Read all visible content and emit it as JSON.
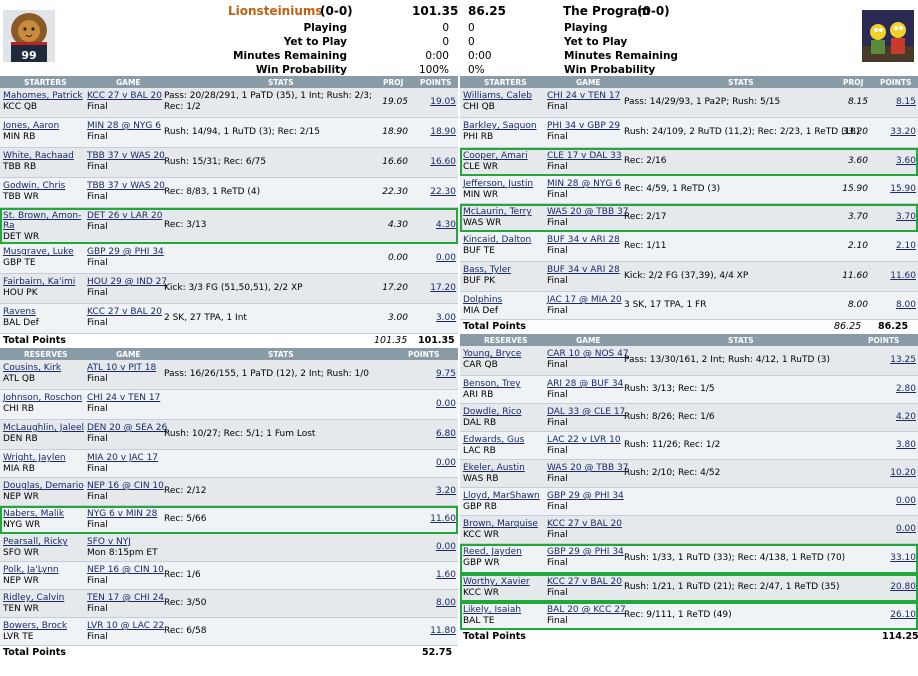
{
  "header": {
    "left_team": "Lionsteiniums",
    "left_record": "(0-0)",
    "left_score": "101.35",
    "right_team": "The Program",
    "right_record": "(0-0)",
    "right_score": "86.25",
    "labels": [
      "Playing",
      "Yet to Play",
      "Minutes Remaining",
      "Win Probability"
    ],
    "left_values": [
      "0",
      "0",
      "0:00",
      "100%"
    ],
    "right_values": [
      "0",
      "0",
      "0:00",
      "0%"
    ],
    "left_jersey": "99"
  },
  "cols": {
    "starters": "STARTERS",
    "reserves": "RESERVES",
    "game": "GAME",
    "stats": "STATS",
    "proj": "PROJ",
    "points": "POINTS",
    "total": "Total Points"
  },
  "left": {
    "starters": [
      {
        "name": "Mahomes, Patrick",
        "pos": "KCC QB",
        "game": "KCC 27 v BAL 20",
        "status": "Final",
        "stats": "Pass: 20/28/291, 1 PaTD (35), 1 Int; Rush: 2/3;",
        "stats2": "Rec: 1/2",
        "proj": "19.05",
        "pts": "19.05"
      },
      {
        "name": "Jones, Aaron",
        "pos": "MIN RB",
        "game": "MIN 28 @ NYG 6",
        "status": "Final",
        "stats": "Rush: 14/94, 1 RuTD (3); Rec: 2/15",
        "proj": "18.90",
        "pts": "18.90"
      },
      {
        "name": "White, Rachaad",
        "pos": "TBB RB",
        "game": "TBB 37 v WAS 20",
        "status": "Final",
        "stats": "Rush: 15/31; Rec: 6/75",
        "proj": "16.60",
        "pts": "16.60"
      },
      {
        "name": "Godwin, Chris",
        "pos": "TBB WR",
        "game": "TBB 37 v WAS 20",
        "status": "Final",
        "stats": "Rec: 8/83, 1 ReTD (4)",
        "proj": "22.30",
        "pts": "22.30"
      },
      {
        "name": "St. Brown, Amon-",
        "name2": "Ra",
        "pos": "DET WR",
        "game": "DET 26 v LAR 20",
        "status": "Final",
        "stats": "Rec: 3/13",
        "proj": "4.30",
        "pts": "4.30"
      },
      {
        "name": "Musgrave, Luke",
        "pos": "GBP TE",
        "game": "GBP 29 @ PHI 34",
        "status": "Final",
        "stats": "",
        "proj": "0.00",
        "pts": "0.00"
      },
      {
        "name": "Fairbairn, Ka'imi",
        "pos": "HOU PK",
        "game": "HOU 29 @ IND 27",
        "status": "Final",
        "stats": "Kick: 3/3 FG (51,50,51), 2/2 XP",
        "proj": "17.20",
        "pts": "17.20"
      },
      {
        "name": "Ravens",
        "pos": "BAL Def",
        "game": "KCC 27 v BAL 20",
        "status": "Final",
        "stats": "2 SK, 27 TPA, 1 Int",
        "proj": "3.00",
        "pts": "3.00"
      }
    ],
    "starters_proj": "101.35",
    "starters_total": "101.35",
    "reserves": [
      {
        "name": "Cousins, Kirk",
        "pos": "ATL QB",
        "game": "ATL 10 v PIT 18",
        "status": "Final",
        "stats": "Pass: 16/26/155, 1 PaTD (12), 2 Int; Rush: 1/0",
        "pts": "9.75"
      },
      {
        "name": "Johnson, Roschon",
        "pos": "CHI RB",
        "game": "CHI 24 v TEN 17",
        "status": "Final",
        "stats": "",
        "pts": "0.00"
      },
      {
        "name": "McLaughlin, Jaleel",
        "pos": "DEN RB",
        "game": "DEN 20 @ SEA 26",
        "status": "Final",
        "stats": "Rush: 10/27; Rec: 5/1; 1 Fum Lost",
        "pts": "6.80"
      },
      {
        "name": "Wright, Jaylen",
        "pos": "MIA RB",
        "game": "MIA 20 v JAC 17",
        "status": "Final",
        "stats": "",
        "pts": "0.00"
      },
      {
        "name": "Douglas, Demario",
        "pos": "NEP WR",
        "game": "NEP 16 @ CIN 10",
        "status": "Final",
        "stats": "Rec: 2/12",
        "pts": "3.20"
      },
      {
        "name": "Nabers, Malik",
        "pos": "NYG WR",
        "game": "NYG 6 v MIN 28",
        "status": "Final",
        "stats": "Rec: 5/66",
        "pts": "11.60"
      },
      {
        "name": "Pearsall, Ricky",
        "pos": "SFO WR",
        "game": "SFO v NYJ",
        "status": "Mon 8:15pm ET",
        "stats": "",
        "pts": "0.00"
      },
      {
        "name": "Polk, Ja'Lynn",
        "pos": "NEP WR",
        "game": "NEP 16 @ CIN 10",
        "status": "Final",
        "stats": "Rec: 1/6",
        "pts": "1.60"
      },
      {
        "name": "Ridley, Calvin",
        "pos": "TEN WR",
        "game": "TEN 17 @ CHI 24",
        "status": "Final",
        "stats": "Rec: 3/50",
        "pts": "8.00"
      },
      {
        "name": "Bowers, Brock",
        "pos": "LVR TE",
        "game": "LVR 10 @ LAC 22",
        "status": "Final",
        "stats": "Rec: 6/58",
        "pts": "11.80"
      }
    ],
    "reserves_total": "52.75"
  },
  "right": {
    "starters": [
      {
        "name": "Williams, Caleb",
        "pos": "CHI QB",
        "game": "CHI 24 v TEN 17",
        "status": "Final",
        "stats": "Pass: 14/29/93, 1 Pa2P; Rush: 5/15",
        "proj": "8.15",
        "pts": "8.15"
      },
      {
        "name": "Barkley, Saquon",
        "pos": "PHI RB",
        "game": "PHI 34 v GBP 29",
        "status": "Final",
        "stats": "Rush: 24/109, 2 RuTD (11,2); Rec: 2/23, 1 ReTD (18)",
        "proj": "33.20",
        "pts": "33.20"
      },
      {
        "name": "Cooper, Amari",
        "pos": "CLE WR",
        "game": "CLE 17 v DAL 33",
        "status": "Final",
        "stats": "Rec: 2/16",
        "proj": "3.60",
        "pts": "3.60"
      },
      {
        "name": "Jefferson, Justin",
        "pos": "MIN WR",
        "game": "MIN 28 @ NYG 6",
        "status": "Final",
        "stats": "Rec: 4/59, 1 ReTD (3)",
        "proj": "15.90",
        "pts": "15.90"
      },
      {
        "name": "McLaurin, Terry",
        "pos": "WAS WR",
        "game": "WAS 20 @ TBB 37",
        "status": "Final",
        "stats": "Rec: 2/17",
        "proj": "3.70",
        "pts": "3.70"
      },
      {
        "name": "Kincaid, Dalton",
        "pos": "BUF TE",
        "game": "BUF 34 v ARI 28",
        "status": "Final",
        "stats": "Rec: 1/11",
        "proj": "2.10",
        "pts": "2.10"
      },
      {
        "name": "Bass, Tyler",
        "pos": "BUF PK",
        "game": "BUF 34 v ARI 28",
        "status": "Final",
        "stats": "Kick: 2/2 FG (37,39), 4/4 XP",
        "proj": "11.60",
        "pts": "11.60"
      },
      {
        "name": "Dolphins",
        "pos": "MIA Def",
        "game": "JAC 17 @ MIA 20",
        "status": "Final",
        "stats": "3 SK, 17 TPA, 1 FR",
        "proj": "8.00",
        "pts": "8.00"
      }
    ],
    "starters_proj": "86.25",
    "starters_total": "86.25",
    "reserves": [
      {
        "name": "Young, Bryce",
        "pos": "CAR QB",
        "game": "CAR 10 @ NOS 47",
        "status": "Final",
        "stats": "Pass: 13/30/161, 2 Int; Rush: 4/12, 1 RuTD (3)",
        "pts": "13.25"
      },
      {
        "name": "Benson, Trey",
        "pos": "ARI RB",
        "game": "ARI 28 @ BUF 34",
        "status": "Final",
        "stats": "Rush: 3/13; Rec: 1/5",
        "pts": "2.80"
      },
      {
        "name": "Dowdle, Rico",
        "pos": "DAL RB",
        "game": "DAL 33 @ CLE 17",
        "status": "Final",
        "stats": "Rush: 8/26; Rec: 1/6",
        "pts": "4.20"
      },
      {
        "name": "Edwards, Gus",
        "pos": "LAC RB",
        "game": "LAC 22 v LVR 10",
        "status": "Final",
        "stats": "Rush: 11/26; Rec: 1/2",
        "pts": "3.80"
      },
      {
        "name": "Ekeler, Austin",
        "pos": "WAS RB",
        "game": "WAS 20 @ TBB 37",
        "status": "Final",
        "stats": "Rush: 2/10; Rec: 4/52",
        "pts": "10.20"
      },
      {
        "name": "Lloyd, MarShawn",
        "pos": "GBP RB",
        "game": "GBP 29 @ PHI 34",
        "status": "Final",
        "stats": "",
        "pts": "0.00"
      },
      {
        "name": "Brown, Marquise",
        "pos": "KCC WR",
        "game": "KCC 27 v BAL 20",
        "status": "Final",
        "stats": "",
        "pts": "0.00"
      },
      {
        "name": "Reed, Jayden",
        "pos": "GBP WR",
        "game": "GBP 29 @ PHI 34",
        "status": "Final",
        "stats": "Rush: 1/33, 1 RuTD (33); Rec: 4/138, 1 ReTD (70)",
        "pts": "33.10"
      },
      {
        "name": "Worthy, Xavier",
        "pos": "KCC WR",
        "game": "KCC 27 v BAL 20",
        "status": "Final",
        "stats": "Rush: 1/21, 1 RuTD (21); Rec: 2/47, 1 ReTD (35)",
        "pts": "20.80"
      },
      {
        "name": "Likely, Isaiah",
        "pos": "BAL TE",
        "game": "BAL 20 @ KCC 27",
        "status": "Final",
        "stats": "Rec: 9/111, 1 ReTD (49)",
        "pts": "26.10"
      }
    ],
    "reserves_total": "114.25"
  }
}
